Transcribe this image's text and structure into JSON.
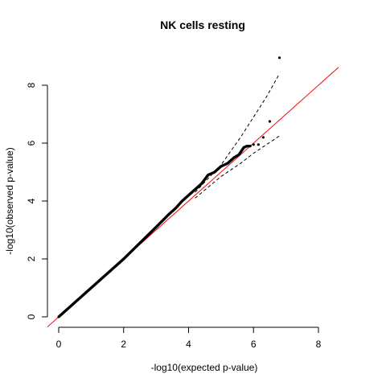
{
  "chart_data": {
    "type": "scatter",
    "title": "NK cells resting",
    "xlabel": "-log10(expected p-value)",
    "ylabel": "-log10(observed p-value)",
    "xlim": [
      0,
      8
    ],
    "ylim": [
      0,
      8
    ],
    "x_ticks": [
      "0",
      "2",
      "4",
      "6",
      "8"
    ],
    "y_ticks": [
      "0",
      "2",
      "4",
      "6",
      "8"
    ],
    "grid": false,
    "legend": "none",
    "colors": {
      "points": "#000000",
      "reference_line": "#ff0000",
      "confidence_band": "#000000"
    },
    "reference_line": {
      "slope": 1,
      "intercept": 0
    },
    "confidence_band": {
      "upper": [
        [
          4.2,
          4.3
        ],
        [
          5.0,
          5.25
        ],
        [
          5.6,
          6.2
        ],
        [
          6.0,
          6.9
        ],
        [
          6.4,
          7.6
        ],
        [
          6.8,
          8.4
        ]
      ],
      "lower": [
        [
          4.2,
          4.1
        ],
        [
          5.0,
          4.85
        ],
        [
          5.6,
          5.3
        ],
        [
          6.0,
          5.65
        ],
        [
          6.4,
          5.95
        ],
        [
          6.8,
          6.25
        ]
      ]
    },
    "series": [
      {
        "points": [
          [
            0.0,
            0.0
          ],
          [
            0.3,
            0.3
          ],
          [
            0.6,
            0.6
          ],
          [
            1.0,
            1.0
          ],
          [
            1.5,
            1.5
          ],
          [
            2.0,
            2.0
          ],
          [
            2.5,
            2.55
          ],
          [
            3.0,
            3.1
          ],
          [
            3.4,
            3.55
          ],
          [
            3.6,
            3.75
          ],
          [
            3.8,
            4.0
          ],
          [
            4.0,
            4.2
          ],
          [
            4.2,
            4.4
          ],
          [
            4.4,
            4.6
          ],
          [
            4.6,
            4.9
          ],
          [
            4.8,
            5.0
          ],
          [
            5.0,
            5.2
          ],
          [
            5.2,
            5.3
          ],
          [
            5.4,
            5.5
          ],
          [
            5.55,
            5.6
          ],
          [
            5.7,
            5.85
          ],
          [
            5.8,
            5.9
          ],
          [
            5.9,
            5.9
          ],
          [
            6.0,
            5.95
          ],
          [
            6.15,
            5.95
          ],
          [
            6.3,
            6.2
          ],
          [
            6.5,
            6.75
          ],
          [
            6.8,
            8.95
          ]
        ]
      }
    ]
  }
}
